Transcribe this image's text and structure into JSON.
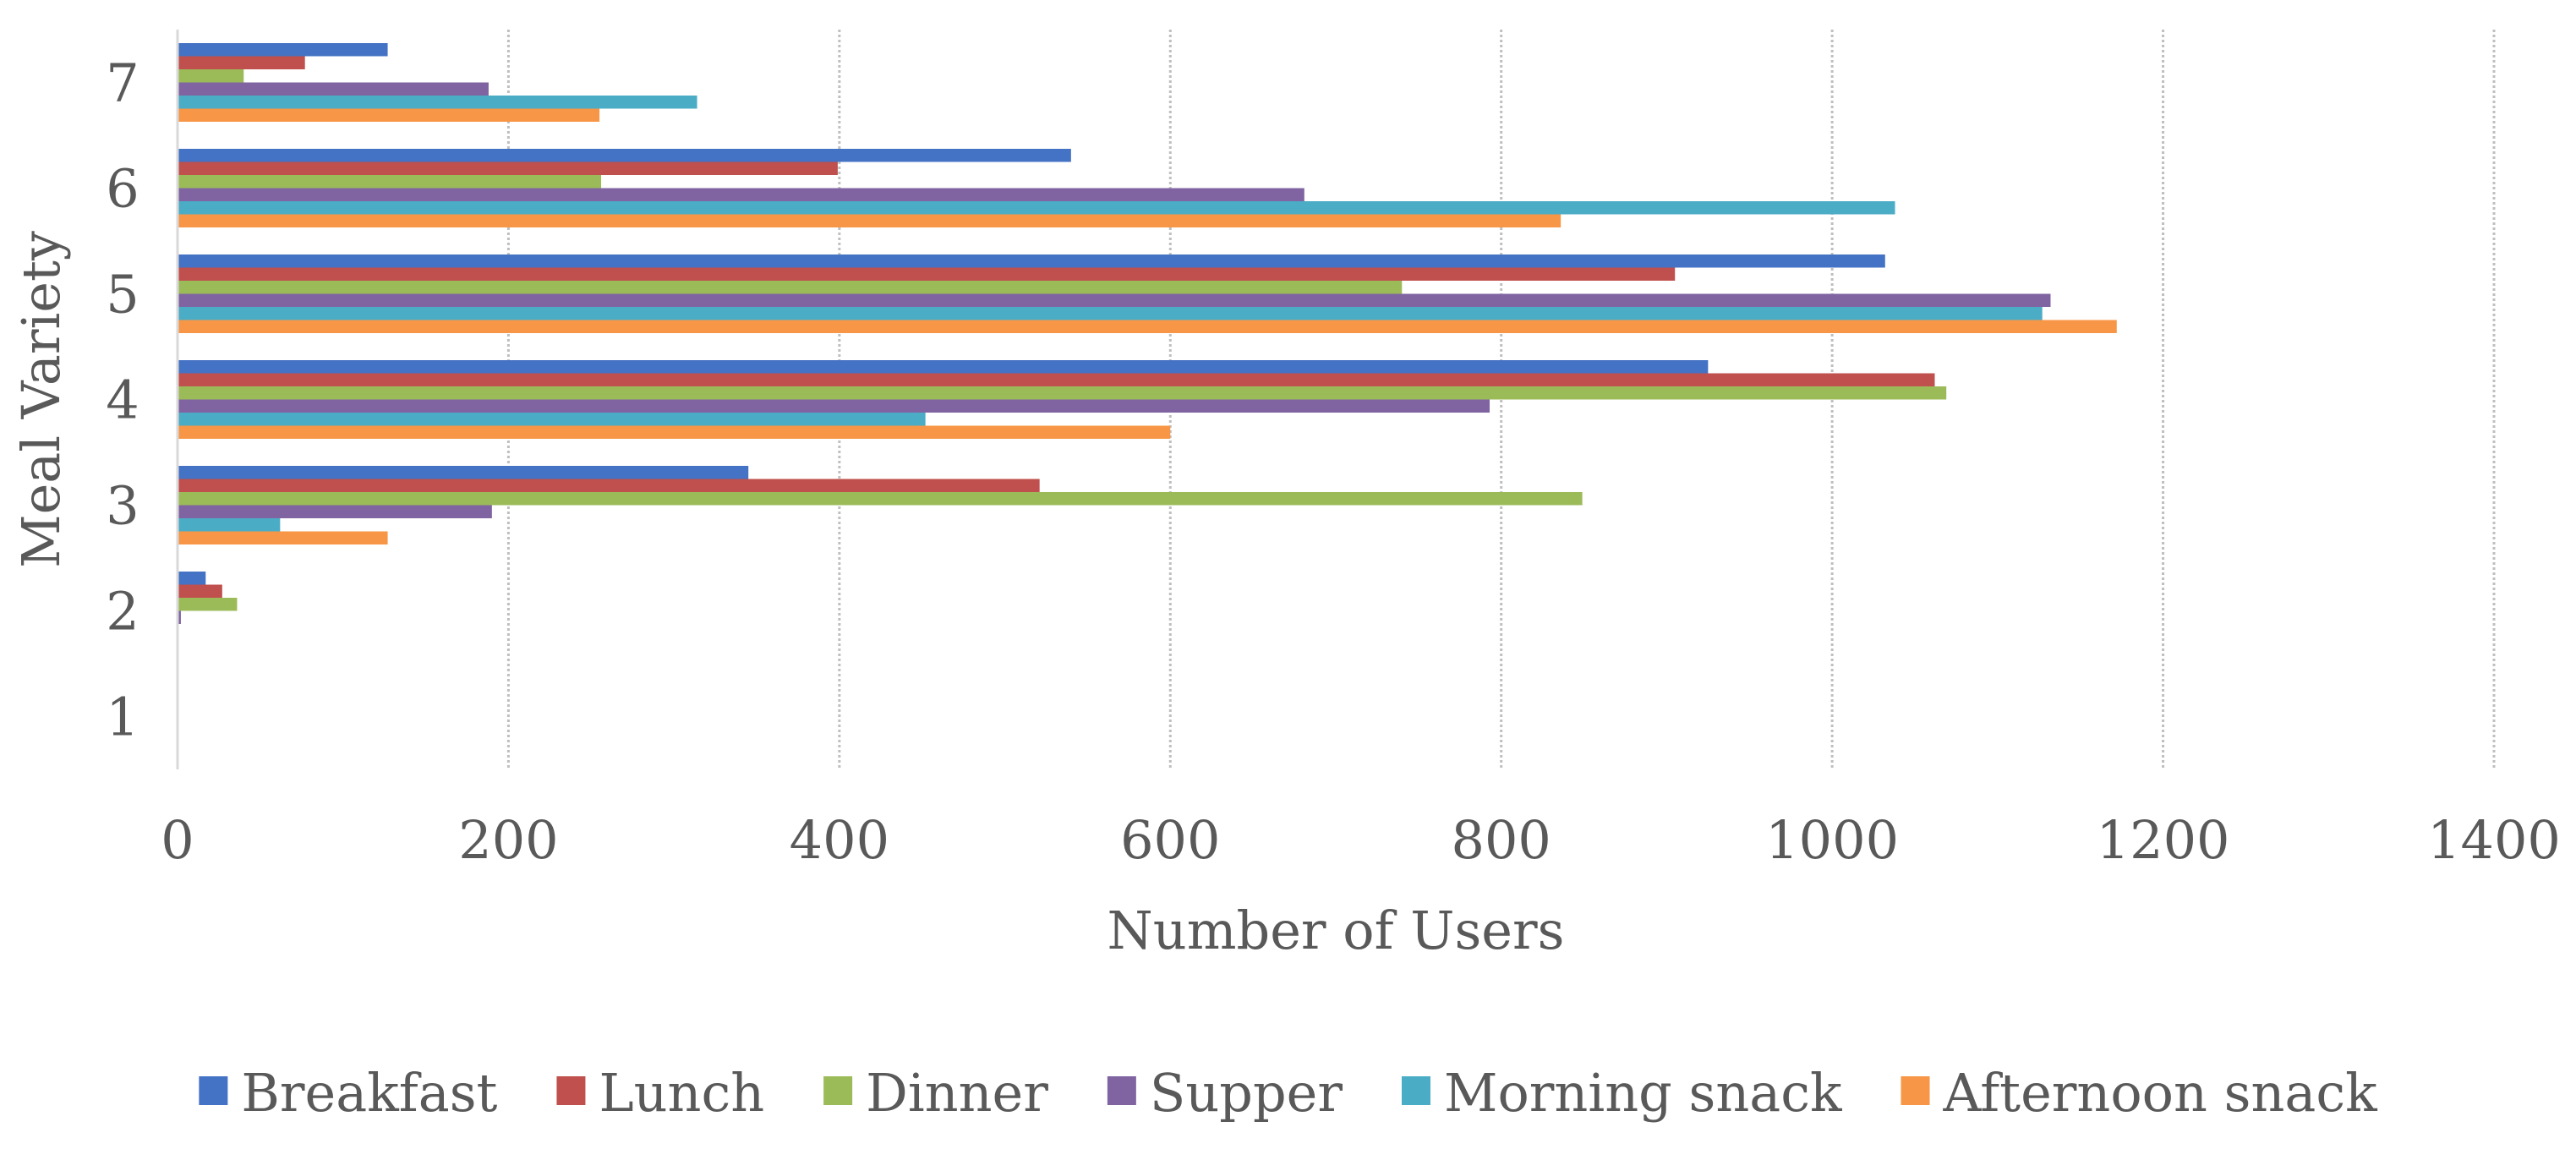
{
  "chart_data": {
    "type": "bar",
    "orientation": "horizontal",
    "title": "",
    "xlabel": "Number of Users",
    "ylabel": "Meal Variety",
    "xlim": [
      0,
      1400
    ],
    "xticks": [
      "0",
      "200",
      "400",
      "600",
      "800",
      "1000",
      "1200",
      "1400"
    ],
    "categories": [
      "1",
      "2",
      "3",
      "4",
      "5",
      "6",
      "7"
    ],
    "grid": "vertical-dashed",
    "legend_position": "bottom",
    "series": [
      {
        "name": "Breakfast",
        "color": "#4472C4",
        "values": [
          0,
          17,
          345,
          925,
          1032,
          540,
          127
        ]
      },
      {
        "name": "Lunch",
        "color": "#C0504D",
        "values": [
          0,
          27,
          521,
          1062,
          905,
          399,
          77
        ]
      },
      {
        "name": "Dinner",
        "color": "#9BBB59",
        "values": [
          0,
          36,
          849,
          1069,
          740,
          256,
          40
        ]
      },
      {
        "name": "Supper",
        "color": "#8064A2",
        "values": [
          0,
          2,
          190,
          793,
          1132,
          681,
          188
        ]
      },
      {
        "name": "Morning snack",
        "color": "#4BACC6",
        "values": [
          0,
          0,
          62,
          452,
          1127,
          1038,
          314
        ]
      },
      {
        "name": "Afternoon snack",
        "color": "#F79646",
        "values": [
          0,
          0,
          127,
          600,
          1172,
          836,
          255
        ]
      }
    ]
  }
}
